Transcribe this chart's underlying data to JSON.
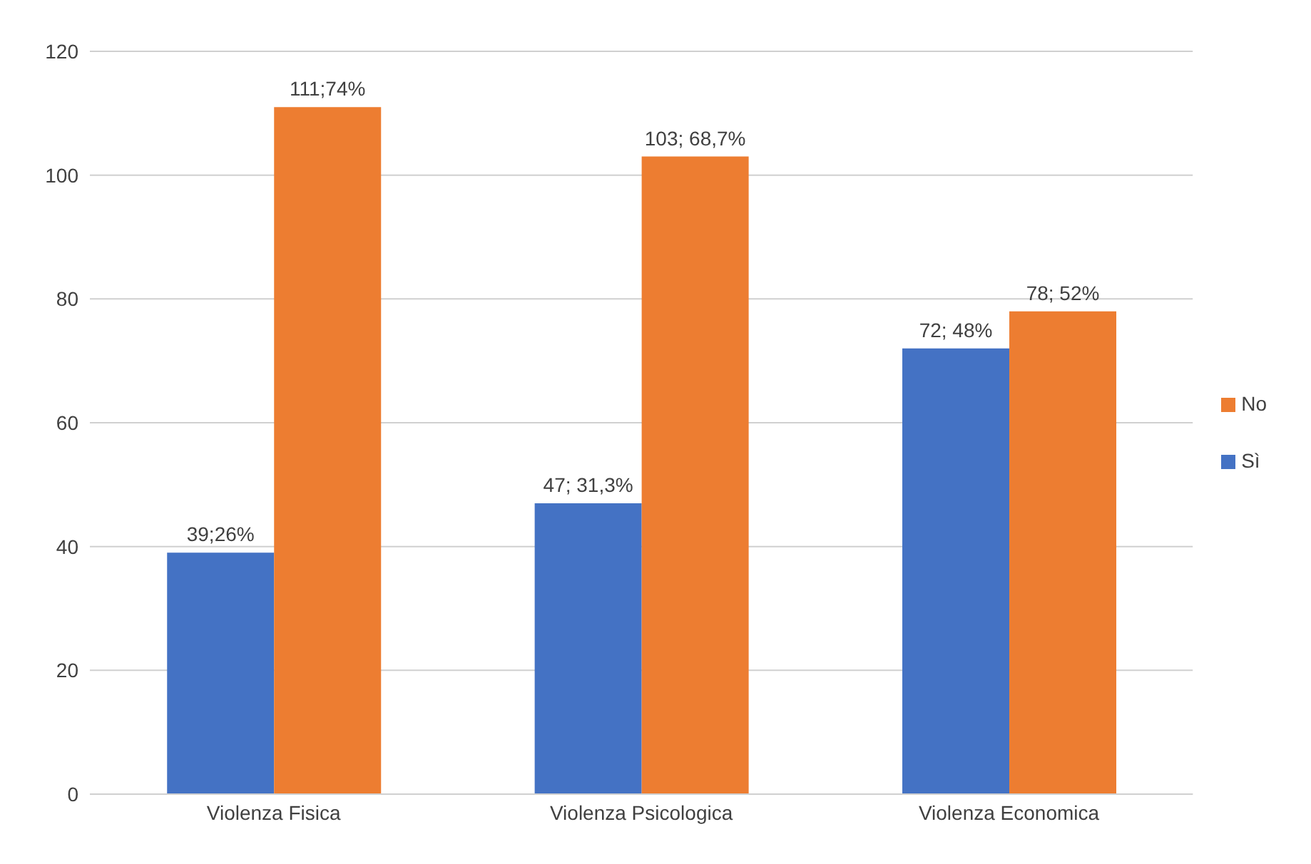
{
  "chart_data": {
    "type": "bar",
    "categories": [
      "Violenza Fisica",
      "Violenza Psicologica",
      "Violenza Economica"
    ],
    "series": [
      {
        "name": "Sì",
        "color": "#4472c4",
        "values": [
          39,
          47,
          72
        ],
        "value_labels": [
          "39;26%",
          "47; 31,3%",
          "72; 48%"
        ]
      },
      {
        "name": "No",
        "color": "#ed7d31",
        "values": [
          111,
          103,
          78
        ],
        "value_labels": [
          "111;74%",
          "103; 68,7%",
          "78; 52%"
        ]
      }
    ],
    "ylim": [
      0,
      120
    ],
    "yticks": [
      0,
      20,
      40,
      60,
      80,
      100,
      120
    ],
    "grid": "y",
    "legend": "right"
  }
}
